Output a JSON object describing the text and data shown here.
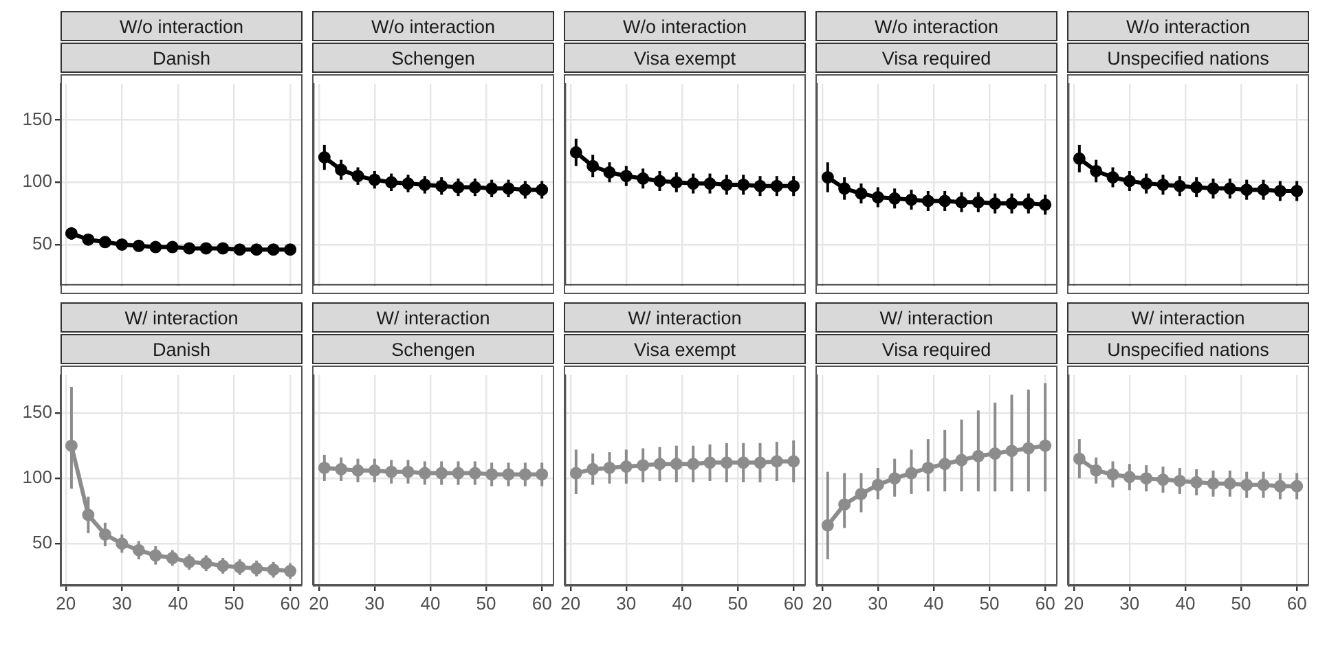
{
  "chart_data": [
    {
      "type": "line",
      "title": "W/o interaction",
      "subtitle": "Danish",
      "x": [
        21,
        24,
        27,
        30,
        33,
        36,
        39,
        42,
        45,
        48,
        51,
        54,
        57,
        60
      ],
      "series": [
        {
          "color": "#000000",
          "values": [
            59,
            54,
            52,
            50,
            49,
            48,
            48,
            47,
            47,
            47,
            46,
            46,
            46,
            46
          ],
          "errors": [
            5,
            4,
            3,
            3,
            3,
            3,
            3,
            3,
            3,
            3,
            3,
            3,
            3,
            3
          ]
        }
      ],
      "xlim": [
        19.05,
        61.95
      ],
      "xticks": [
        20,
        30,
        40,
        50,
        60
      ],
      "ylim": [
        18,
        179
      ],
      "yticks": [
        50,
        100,
        150
      ],
      "grid": true,
      "marker": "circle",
      "tick_labels": "y"
    },
    {
      "type": "line",
      "title": "W/o interaction",
      "subtitle": "Schengen",
      "x": [
        21,
        24,
        27,
        30,
        33,
        36,
        39,
        42,
        45,
        48,
        51,
        54,
        57,
        60
      ],
      "series": [
        {
          "color": "#000000",
          "values": [
            120,
            110,
            105,
            102,
            100,
            99,
            98,
            97,
            96,
            96,
            95,
            95,
            94,
            94
          ],
          "errors": [
            10,
            8,
            7,
            7,
            7,
            7,
            7,
            7,
            7,
            7,
            7,
            7,
            7,
            7
          ]
        }
      ],
      "xlim": [
        19.05,
        61.95
      ],
      "xticks": [
        20,
        30,
        40,
        50,
        60
      ],
      "ylim": [
        18,
        179
      ],
      "yticks": [
        50,
        100,
        150
      ],
      "grid": true,
      "marker": "circle",
      "tick_labels": false
    },
    {
      "type": "line",
      "title": "W/o interaction",
      "subtitle": "Visa exempt",
      "x": [
        21,
        24,
        27,
        30,
        33,
        36,
        39,
        42,
        45,
        48,
        51,
        54,
        57,
        60
      ],
      "series": [
        {
          "color": "#000000",
          "values": [
            124,
            113,
            108,
            105,
            103,
            101,
            100,
            99,
            99,
            98,
            98,
            97,
            97,
            97
          ],
          "errors": [
            11,
            9,
            8,
            8,
            8,
            8,
            8,
            8,
            8,
            8,
            8,
            8,
            8,
            8
          ]
        }
      ],
      "xlim": [
        19.05,
        61.95
      ],
      "xticks": [
        20,
        30,
        40,
        50,
        60
      ],
      "ylim": [
        18,
        179
      ],
      "yticks": [
        50,
        100,
        150
      ],
      "grid": true,
      "marker": "circle",
      "tick_labels": false
    },
    {
      "type": "line",
      "title": "W/o interaction",
      "subtitle": "Visa required",
      "x": [
        21,
        24,
        27,
        30,
        33,
        36,
        39,
        42,
        45,
        48,
        51,
        54,
        57,
        60
      ],
      "series": [
        {
          "color": "#000000",
          "values": [
            104,
            95,
            91,
            88,
            87,
            86,
            85,
            85,
            84,
            84,
            83,
            83,
            83,
            82
          ],
          "errors": [
            12,
            9,
            8,
            8,
            8,
            8,
            8,
            8,
            8,
            8,
            8,
            8,
            8,
            8
          ]
        }
      ],
      "xlim": [
        19.05,
        61.95
      ],
      "xticks": [
        20,
        30,
        40,
        50,
        60
      ],
      "ylim": [
        18,
        179
      ],
      "yticks": [
        50,
        100,
        150
      ],
      "grid": true,
      "marker": "circle",
      "tick_labels": false
    },
    {
      "type": "line",
      "title": "W/o interaction",
      "subtitle": "Unspecified nations",
      "x": [
        21,
        24,
        27,
        30,
        33,
        36,
        39,
        42,
        45,
        48,
        51,
        54,
        57,
        60
      ],
      "series": [
        {
          "color": "#000000",
          "values": [
            119,
            109,
            104,
            101,
            99,
            98,
            97,
            96,
            95,
            95,
            94,
            94,
            93,
            93
          ],
          "errors": [
            11,
            9,
            8,
            8,
            8,
            8,
            8,
            8,
            8,
            8,
            8,
            8,
            8,
            8
          ]
        }
      ],
      "xlim": [
        19.05,
        61.95
      ],
      "xticks": [
        20,
        30,
        40,
        50,
        60
      ],
      "ylim": [
        18,
        179
      ],
      "yticks": [
        50,
        100,
        150
      ],
      "grid": true,
      "marker": "circle",
      "tick_labels": false
    },
    {
      "type": "line",
      "title": "W/ interaction",
      "subtitle": "Danish",
      "x": [
        21,
        24,
        27,
        30,
        33,
        36,
        39,
        42,
        45,
        48,
        51,
        54,
        57,
        60
      ],
      "series": [
        {
          "color": "#8c8c8c",
          "values": [
            125,
            72,
            57,
            50,
            45,
            41,
            39,
            36,
            35,
            33,
            32,
            31,
            30,
            29
          ],
          "errors": [
            [
              92,
              170
            ],
            14,
            9,
            7,
            7,
            7,
            6,
            6,
            6,
            6,
            6,
            6,
            6,
            6
          ]
        }
      ],
      "xlim": [
        19.05,
        61.95
      ],
      "xticks": [
        20,
        30,
        40,
        50,
        60
      ],
      "ylim": [
        18,
        179
      ],
      "yticks": [
        50,
        100,
        150
      ],
      "grid": true,
      "marker": "circle"
    },
    {
      "type": "line",
      "title": "W/ interaction",
      "subtitle": "Schengen",
      "x": [
        21,
        24,
        27,
        30,
        33,
        36,
        39,
        42,
        45,
        48,
        51,
        54,
        57,
        60
      ],
      "series": [
        {
          "color": "#8c8c8c",
          "values": [
            108,
            107,
            106,
            106,
            105,
            105,
            104,
            104,
            104,
            104,
            103,
            103,
            103,
            103
          ],
          "errors": [
            10,
            9,
            9,
            9,
            9,
            9,
            9,
            9,
            9,
            9,
            9,
            9,
            9,
            9
          ]
        }
      ],
      "xlim": [
        19.05,
        61.95
      ],
      "xticks": [
        20,
        30,
        40,
        50,
        60
      ],
      "ylim": [
        18,
        179
      ],
      "yticks": [
        50,
        100,
        150
      ],
      "grid": true,
      "marker": "circle",
      "tick_labels": "x"
    },
    {
      "type": "line",
      "title": "W/ interaction",
      "subtitle": "Visa exempt",
      "x": [
        21,
        24,
        27,
        30,
        33,
        36,
        39,
        42,
        45,
        48,
        51,
        54,
        57,
        60
      ],
      "series": [
        {
          "color": "#8c8c8c",
          "values": [
            104,
            107,
            108,
            109,
            110,
            111,
            111,
            111,
            112,
            112,
            112,
            112,
            113,
            113
          ],
          "errors": [
            [
              88,
              122
            ],
            12,
            12,
            13,
            13,
            13,
            14,
            14,
            14,
            15,
            15,
            15,
            15,
            16
          ]
        }
      ],
      "xlim": [
        19.05,
        61.95
      ],
      "xticks": [
        20,
        30,
        40,
        50,
        60
      ],
      "ylim": [
        18,
        179
      ],
      "yticks": [
        50,
        100,
        150
      ],
      "grid": true,
      "marker": "circle",
      "tick_labels": "x"
    },
    {
      "type": "line",
      "title": "W/ interaction",
      "subtitle": "Visa required",
      "x": [
        21,
        24,
        27,
        30,
        33,
        36,
        39,
        42,
        45,
        48,
        51,
        54,
        57,
        60
      ],
      "series": [
        {
          "color": "#8c8c8c",
          "values": [
            64,
            80,
            88,
            95,
            100,
            104,
            108,
            111,
            114,
            117,
            119,
            121,
            123,
            125
          ],
          "errors": [
            [
              38,
              105
            ],
            [
              62,
              104
            ],
            [
              74,
              104
            ],
            [
              84,
              108
            ],
            [
              86,
              115
            ],
            [
              88,
              122
            ],
            [
              90,
              130
            ],
            [
              90,
              137
            ],
            [
              90,
              145
            ],
            [
              90,
              152
            ],
            [
              90,
              158
            ],
            [
              90,
              164
            ],
            [
              90,
              168
            ],
            [
              90,
              173
            ]
          ]
        }
      ],
      "xlim": [
        19.05,
        61.95
      ],
      "xticks": [
        20,
        30,
        40,
        50,
        60
      ],
      "ylim": [
        18,
        179
      ],
      "yticks": [
        50,
        100,
        150
      ],
      "grid": true,
      "marker": "circle",
      "tick_labels": "x"
    },
    {
      "type": "line",
      "title": "W/ interaction",
      "subtitle": "Unspecified nations",
      "x": [
        21,
        24,
        27,
        30,
        33,
        36,
        39,
        42,
        45,
        48,
        51,
        54,
        57,
        60
      ],
      "series": [
        {
          "color": "#8c8c8c",
          "values": [
            115,
            106,
            103,
            101,
            100,
            99,
            98,
            97,
            96,
            96,
            95,
            95,
            94,
            94
          ],
          "errors": [
            [
              100,
              130
            ],
            10,
            10,
            10,
            10,
            10,
            10,
            10,
            10,
            10,
            10,
            10,
            10,
            10
          ]
        }
      ],
      "xlim": [
        19.05,
        61.95
      ],
      "xticks": [
        20,
        30,
        40,
        50,
        60
      ],
      "ylim": [
        18,
        179
      ],
      "yticks": [
        50,
        100,
        150
      ],
      "grid": true,
      "marker": "circle",
      "tick_labels": "x"
    }
  ]
}
